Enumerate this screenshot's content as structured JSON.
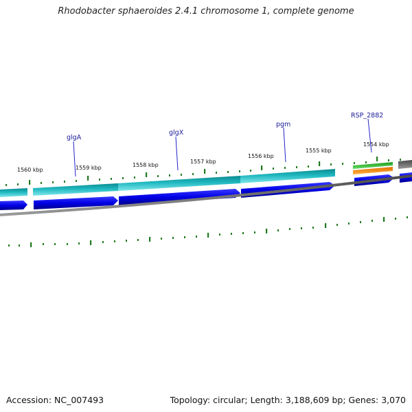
{
  "title": "Rhodobacter sphaeroides 2.4.1 chromosome 1, complete genome",
  "footer": {
    "accession": "Accession: NC_007493",
    "summary": "Topology: circular; Length: 3,188,609 bp; Genes: 3,070"
  },
  "map": {
    "ticks": [
      "1560 kbp",
      "1559 kbp",
      "1558 kbp",
      "1557 kbp",
      "1556 kbp",
      "1555 kbp",
      "1554 kbp"
    ],
    "genes": [
      "glgA",
      "glgX",
      "pgm",
      "RSP_2882"
    ]
  },
  "colors": {
    "cds_forward": "#0000e6",
    "gene_feature": "#20b8c0",
    "gene_feature_dark": "#0a8a90",
    "rrna_green": "#33bb33",
    "trna_orange": "#ff8c00",
    "gray_feature": "#666666",
    "backbone": "#808080",
    "tick": "#1f7a1f",
    "label": "#1a1a99"
  }
}
